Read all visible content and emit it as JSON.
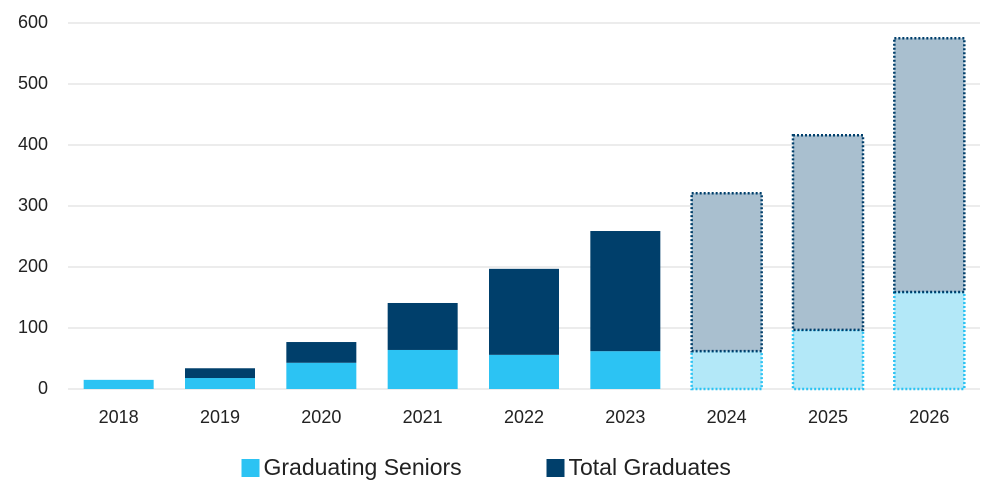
{
  "chart_data": {
    "type": "stacked_bar",
    "categories": [
      "2018",
      "2019",
      "2020",
      "2021",
      "2022",
      "2023",
      "2024",
      "2025",
      "2026"
    ],
    "series": [
      {
        "name": "Graduating Seniors",
        "color": "#2cc3f3",
        "colors": [
          "#2cc3f3",
          "#2cc3f3",
          "#2cc3f3",
          "#2cc3f3",
          "#2cc3f3",
          "#2cc3f3",
          "#b3e8f8",
          "#b3e8f8",
          "#b3e8f8"
        ],
        "values": [
          15,
          18,
          43,
          64,
          56,
          62,
          62,
          97,
          159
        ]
      },
      {
        "name": "Total Graduates",
        "color": "#003f6b",
        "colors": [
          "#003f6b",
          "#003f6b",
          "#003f6b",
          "#003f6b",
          "#003f6b",
          "#003f6b",
          "#a9bfcf",
          "#a9bfcf",
          "#a9bfcf"
        ],
        "values": [
          0,
          16,
          34,
          77,
          141,
          197,
          259,
          319,
          416
        ]
      }
    ],
    "dotted_outline": [
      false,
      false,
      false,
      false,
      false,
      false,
      true,
      true,
      true
    ],
    "ylim": [
      0,
      600
    ],
    "yticks": [
      0,
      100,
      200,
      300,
      400,
      500,
      600
    ],
    "grid": true,
    "legend": "bottom"
  }
}
